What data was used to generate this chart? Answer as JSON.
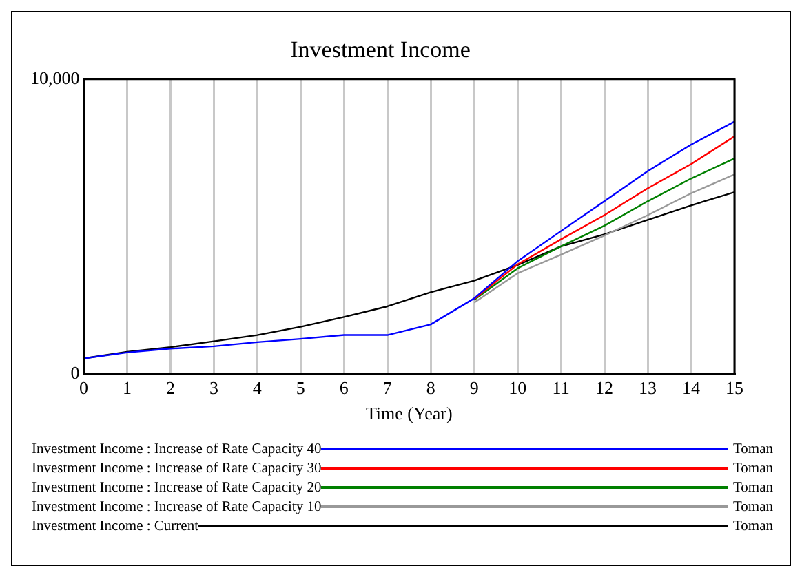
{
  "chart_data": {
    "type": "line",
    "title": "Investment Income",
    "xlabel": "Time (Year)",
    "x": [
      0,
      1,
      2,
      3,
      4,
      5,
      6,
      7,
      8,
      9,
      10,
      11,
      12,
      13,
      14,
      15
    ],
    "series": [
      {
        "name": "Investment Income : Increase of Rate Capacity 40",
        "color": "#0000ff",
        "values": [
          540,
          740,
          870,
          950,
          1090,
          1200,
          1330,
          1330,
          1690,
          2570,
          3830,
          4850,
          5860,
          6880,
          7780,
          8560
        ]
      },
      {
        "name": "Investment Income : Increase of Rate Capacity 30",
        "color": "#ff0000",
        "values": [
          null,
          null,
          null,
          null,
          null,
          null,
          null,
          null,
          null,
          2550,
          3720,
          4570,
          5390,
          6300,
          7120,
          8060
        ]
      },
      {
        "name": "Investment Income : Increase of Rate Capacity 20",
        "color": "#008000",
        "values": [
          null,
          null,
          null,
          null,
          null,
          null,
          null,
          null,
          null,
          2520,
          3590,
          4330,
          5030,
          5860,
          6630,
          7310
        ]
      },
      {
        "name": "Investment Income : Increase of Rate Capacity 10",
        "color": "#999999",
        "values": [
          null,
          null,
          null,
          null,
          null,
          null,
          null,
          null,
          null,
          2430,
          3420,
          4050,
          4700,
          5390,
          6130,
          6770
        ]
      },
      {
        "name": "Investment Income : Current",
        "color": "#000000",
        "values": [
          540,
          760,
          920,
          1120,
          1330,
          1610,
          1940,
          2300,
          2780,
          3170,
          3700,
          4330,
          4740,
          5230,
          5720,
          6170
        ]
      }
    ],
    "annotations": [
      "Toman",
      "Toman",
      "Toman",
      "Toman",
      "Toman"
    ],
    "xlim": [
      0,
      15
    ],
    "xticks": [
      0,
      1,
      2,
      3,
      4,
      5,
      6,
      7,
      8,
      9,
      10,
      11,
      12,
      13,
      14,
      15
    ],
    "ylim": [
      0,
      10000
    ],
    "yticks": [
      0,
      {
        "value": 10000,
        "label": "10,000"
      }
    ],
    "grid": "x",
    "legend": "bottom",
    "marker": "none",
    "line_style": "solid"
  }
}
